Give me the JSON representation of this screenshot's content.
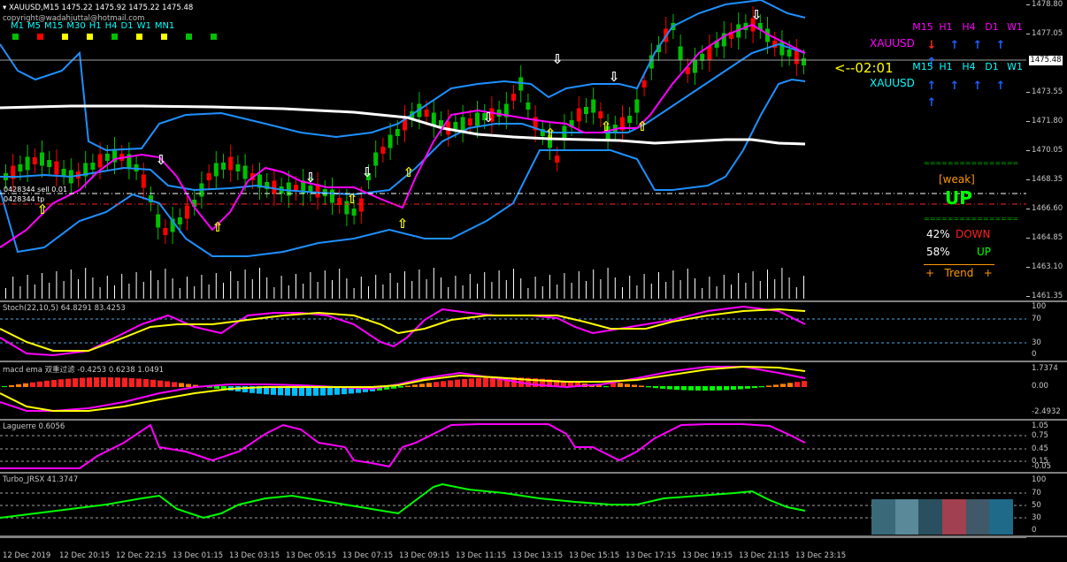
{
  "chart_header": {
    "symbol_line": "XAUUSD,M15  1475.22 1475.92 1475.22 1475.48",
    "copyright": "copyright@wadahjuttal@hotmail.com",
    "timeframes": [
      {
        "label": "M1",
        "color": "#00c000"
      },
      {
        "label": "M5",
        "color": "#ff0000"
      },
      {
        "label": "M15",
        "color": "#ffff00"
      },
      {
        "label": "M30",
        "color": "#ffff00"
      },
      {
        "label": "H1",
        "color": "#00c000"
      },
      {
        "label": "H4",
        "color": "#ffff00"
      },
      {
        "label": "D1",
        "color": "#ffff00"
      },
      {
        "label": "W1",
        "color": "#00c000"
      },
      {
        "label": "MN1",
        "color": "#00c000"
      }
    ]
  },
  "order_lines": {
    "sell": "0428344 sell 0.01",
    "tp": "0428344 tp"
  },
  "dashboard": {
    "row1": {
      "symbol": "XAUUSD",
      "headers": [
        "M15",
        "H1",
        "H4",
        "D1",
        "W1"
      ],
      "arrows": [
        "down",
        "up",
        "up",
        "up",
        "up"
      ]
    },
    "timer": "<--02:01",
    "row2": {
      "symbol": "XAUUSD",
      "headers": [
        "M15",
        "H1",
        "H4",
        "D1",
        "W1"
      ],
      "arrows": [
        "up",
        "up",
        "up",
        "up",
        "up"
      ]
    },
    "separator": "================",
    "strength_label": "[weak]",
    "direction": "UP",
    "down_pct": "42%",
    "down_label": "DOWN",
    "up_pct": "58%",
    "up_label": "UP",
    "trend_label": "+   Trend   +"
  },
  "price_scale": {
    "labels": [
      "1478.80",
      "1477.05",
      "1475.48",
      "1473.55",
      "1471.80",
      "1470.05",
      "1468.35",
      "1466.60",
      "1464.85",
      "1463.10",
      "1461.35"
    ],
    "current": "1475.48"
  },
  "indicators": {
    "stoch": {
      "title": "Stoch(22,10,5) 64.8291 83.4253",
      "levels": [
        "100",
        "70",
        "30",
        "0"
      ]
    },
    "macd": {
      "title": "macd ema 双重过滤 -0.4253 0.6238 1.0491",
      "levels": [
        "1.7374",
        "0.00",
        "-2.4932"
      ]
    },
    "laguerre": {
      "title": "Laguerre 0.6056",
      "levels": [
        "1.05",
        "0.75",
        "0.45",
        "0.15",
        "-0.05"
      ]
    },
    "turbo": {
      "title": "Turbo_JRSX 41.3747",
      "levels": [
        "100",
        "70",
        "50",
        "30",
        "0"
      ]
    }
  },
  "time_axis": [
    "12 Dec 2019",
    "12 Dec 20:15",
    "12 Dec 22:15",
    "13 Dec 01:15",
    "13 Dec 03:15",
    "13 Dec 05:15",
    "13 Dec 07:15",
    "13 Dec 09:15",
    "13 Dec 11:15",
    "13 Dec 13:15",
    "13 Dec 15:15",
    "13 Dec 17:15",
    "13 Dec 19:15",
    "13 Dec 21:15",
    "13 Dec 23:15"
  ],
  "colors": {
    "bull": "#00c000",
    "bear": "#ff0000",
    "bands": "#1e90ff",
    "ma": "#ffffff",
    "magenta": "#ff00ff",
    "yellow": "#ffff00",
    "green_line": "#00ff00",
    "header_cyan": "#00ffff",
    "arrow_blue": "#1e5cff"
  }
}
